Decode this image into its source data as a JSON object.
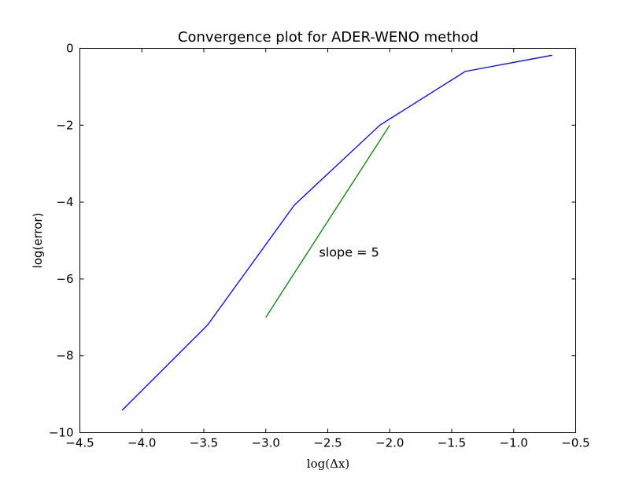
{
  "chart_data": {
    "type": "line",
    "title": "Convergence plot for ADER-WENO method",
    "xlabel": "log(Δx)",
    "ylabel": "log(error)",
    "xlim": [
      -4.5,
      -0.5
    ],
    "ylim": [
      -10,
      0
    ],
    "xticks": [
      -4.5,
      -4.0,
      -3.5,
      -3.0,
      -2.5,
      -2.0,
      -1.5,
      -1.0,
      -0.5
    ],
    "xtick_labels": [
      "−4.5",
      "−4.0",
      "−3.5",
      "−3.0",
      "−2.5",
      "−2.0",
      "−1.5",
      "−1.0",
      "−0.5"
    ],
    "yticks": [
      -10,
      -8,
      -6,
      -4,
      -2,
      0
    ],
    "ytick_labels": [
      "−10",
      "−8",
      "−6",
      "−4",
      "−2",
      "0"
    ],
    "grid": false,
    "series": [
      {
        "color": "#0000ff",
        "x": [
          -4.16,
          -3.47,
          -2.77,
          -2.08,
          -1.39,
          -0.69
        ],
        "y": [
          -9.42,
          -7.2,
          -4.08,
          -2.0,
          -0.6,
          -0.18
        ]
      },
      {
        "color": "#008000",
        "x": [
          -3.0,
          -2.0
        ],
        "y": [
          -7.0,
          -2.0
        ]
      }
    ],
    "annotations": [
      {
        "text": "slope = 5",
        "x": -2.57,
        "y": -5.3
      }
    ]
  }
}
